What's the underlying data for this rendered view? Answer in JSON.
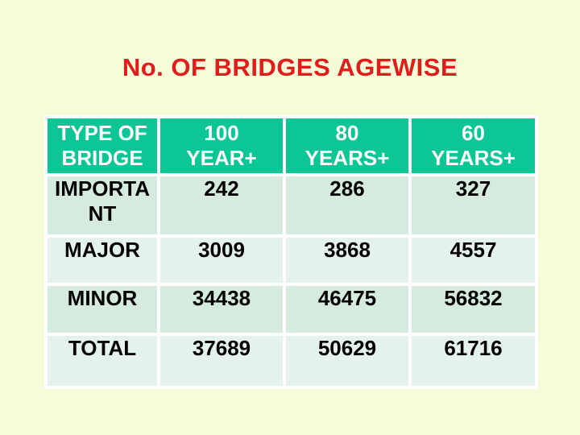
{
  "slide": {
    "title": "No. OF BRIDGES AGEWISE"
  },
  "table": {
    "columns": [
      {
        "label": "TYPE OF\nBRIDGE"
      },
      {
        "label": "100\nYEAR+"
      },
      {
        "label": "80\nYEARS+"
      },
      {
        "label": "60\nYEARS+"
      }
    ],
    "rows": [
      {
        "label": "IMPORTA\nNT",
        "values": [
          "242",
          "286",
          "327"
        ]
      },
      {
        "label": "MAJOR",
        "values": [
          "3009",
          "3868",
          "4557"
        ]
      },
      {
        "label": "MINOR",
        "values": [
          "34438",
          "46475",
          "56832"
        ]
      },
      {
        "label": "TOTAL",
        "values": [
          "37689",
          "50629",
          "61716"
        ]
      }
    ]
  },
  "colors": {
    "background": "#F5FCD8",
    "title_text": "#E01C1C",
    "header_bg": "#0CC795",
    "header_text": "#FFFFFF",
    "row_dark": "#D5EBDE",
    "row_light": "#E3F2EA",
    "cell_gap": "#FFFFFF",
    "body_text": "#000000"
  }
}
